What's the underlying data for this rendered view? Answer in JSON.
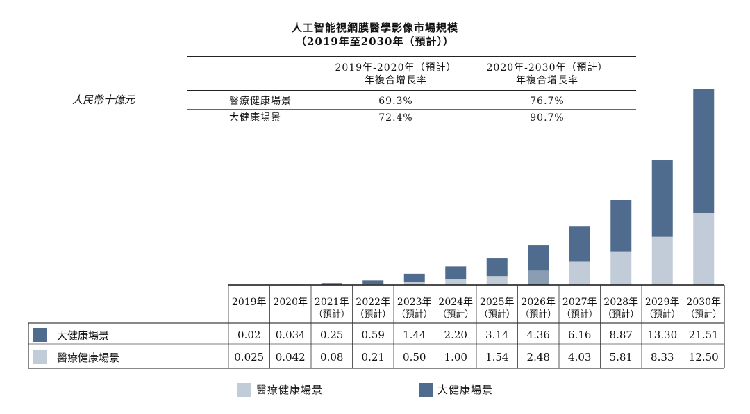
{
  "title_line1": "人工智能視網膜醫學影像市場規模",
  "title_line2": "（2019年至2030年（預計））",
  "unit_label": "人民幣十億元",
  "cagr_table": {
    "header_col1_line1": "2019年-2020年（預計）",
    "header_col1_line2": "年複合增長率",
    "header_col2_line1": "2020年-2030年（預計）",
    "header_col2_line2": "年複合增長率",
    "rows": [
      {
        "label": "醫療健康場景",
        "v1": "69.3%",
        "v2": "76.7%"
      },
      {
        "label": "大健康場景",
        "v1": "72.4%",
        "v2": "90.7%"
      }
    ]
  },
  "colors": {
    "da_jiankang": "#4f6b8e",
    "yiliao": "#c2ccd8",
    "highlight_2026": "#8b9db3"
  },
  "chart_data": {
    "type": "bar",
    "stacked": true,
    "categories": [
      {
        "line1": "2019年",
        "line2": ""
      },
      {
        "line1": "2020年",
        "line2": ""
      },
      {
        "line1": "2021年",
        "line2": "（預計）"
      },
      {
        "line1": "2022年",
        "line2": "（預計）"
      },
      {
        "line1": "2023年",
        "line2": "（預計）"
      },
      {
        "line1": "2024年",
        "line2": "（預計）"
      },
      {
        "line1": "2025年",
        "line2": "（預計）"
      },
      {
        "line1": "2026年",
        "line2": "（預計）"
      },
      {
        "line1": "2027年",
        "line2": "（預計）"
      },
      {
        "line1": "2028年",
        "line2": "（預計）"
      },
      {
        "line1": "2029年",
        "line2": "（預計）"
      },
      {
        "line1": "2030年",
        "line2": "（預計）"
      }
    ],
    "series": [
      {
        "name": "大健康場景",
        "color": "#4f6b8e",
        "values": [
          0.02,
          0.034,
          0.25,
          0.59,
          1.44,
          2.2,
          3.14,
          4.36,
          6.16,
          8.87,
          13.3,
          21.51
        ],
        "labels": [
          "0.02",
          "0.034",
          "0.25",
          "0.59",
          "1.44",
          "2.20",
          "3.14",
          "4.36",
          "6.16",
          "8.87",
          "13.30",
          "21.51"
        ]
      },
      {
        "name": "醫療健康場景",
        "color": "#c2ccd8",
        "values": [
          0.025,
          0.042,
          0.08,
          0.21,
          0.5,
          1.0,
          1.54,
          2.48,
          4.03,
          5.81,
          8.33,
          12.5
        ],
        "labels": [
          "0.025",
          "0.042",
          "0.08",
          "0.21",
          "0.50",
          "1.00",
          "1.54",
          "2.48",
          "4.03",
          "5.81",
          "8.33",
          "12.50"
        ]
      }
    ],
    "legend": [
      "醫療健康場景",
      "大健康場景"
    ],
    "legend_position": "bottom",
    "grid": false
  }
}
